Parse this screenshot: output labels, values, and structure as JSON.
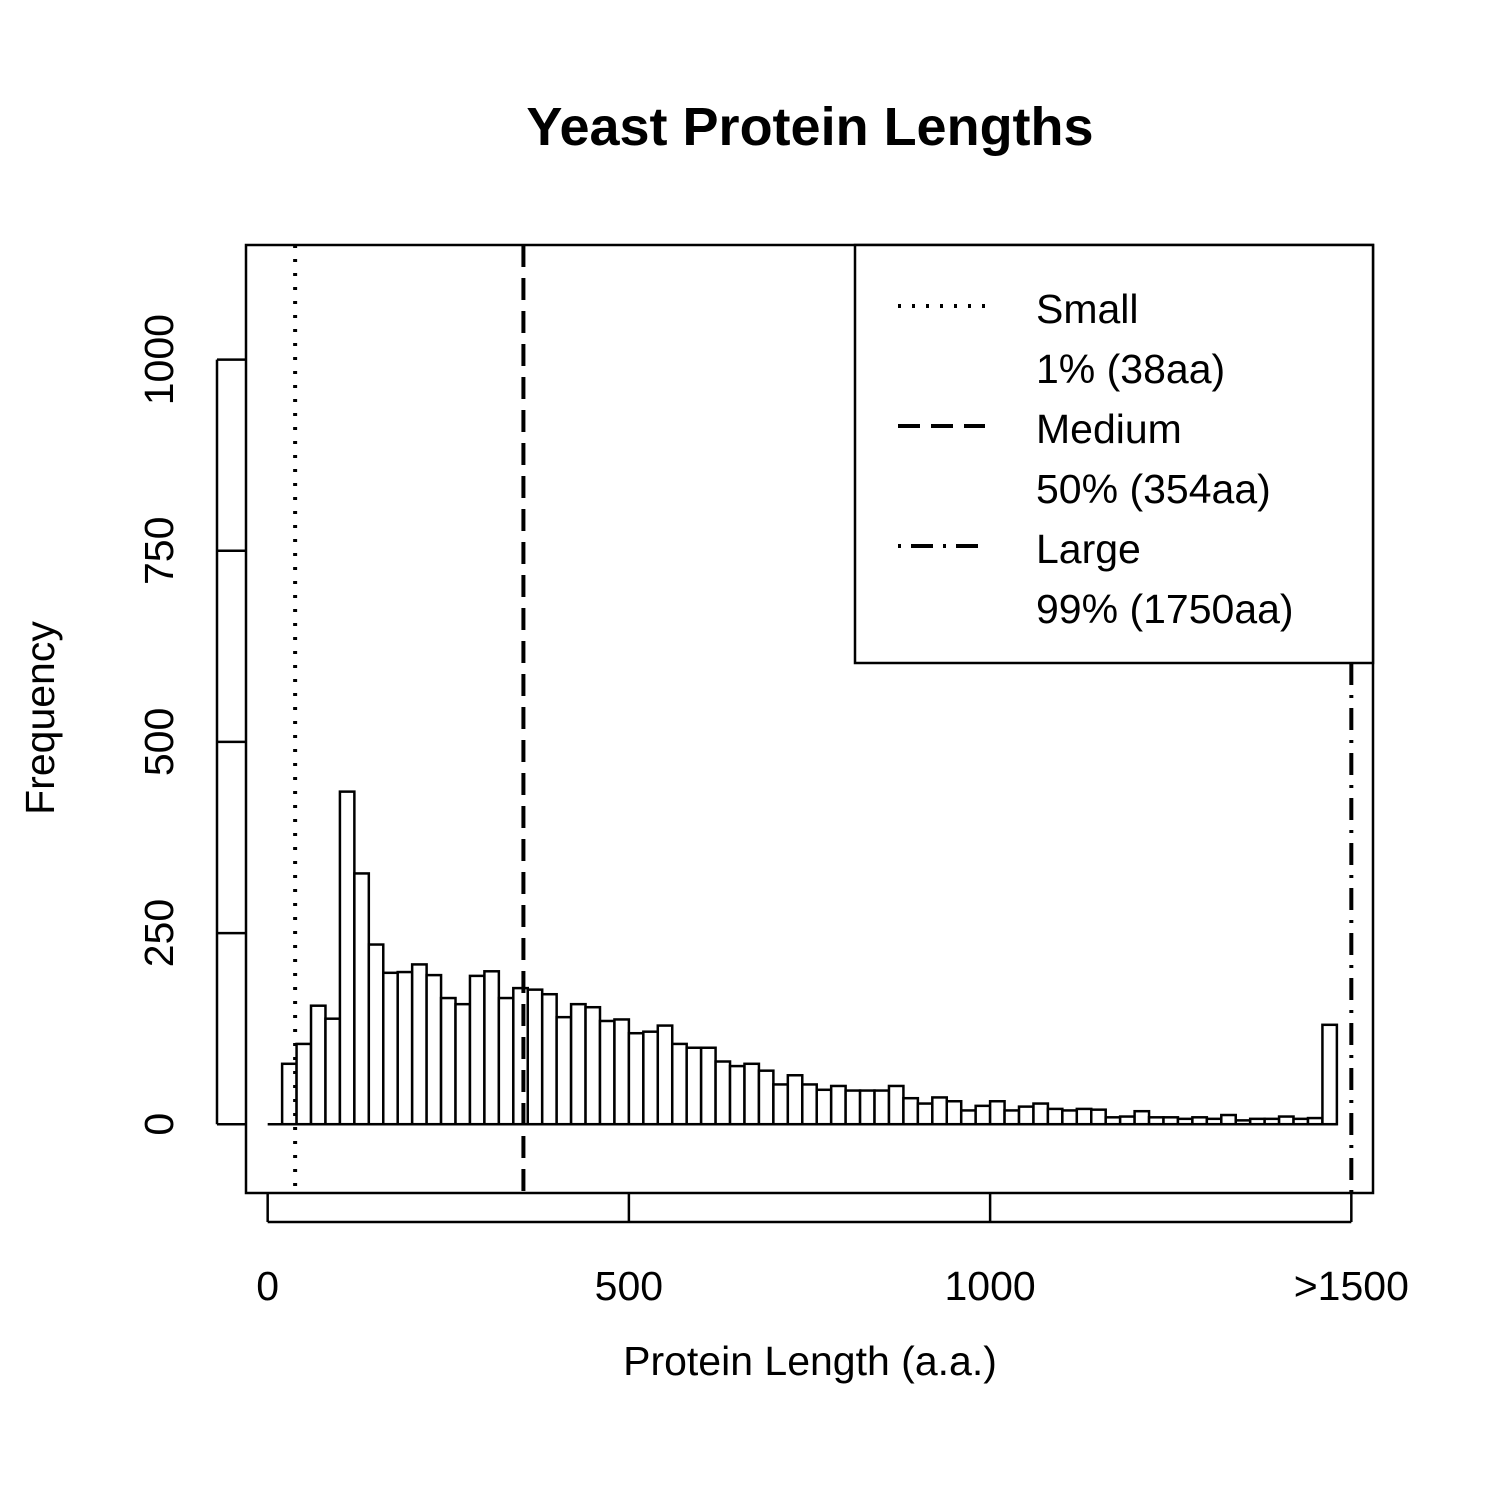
{
  "chart_data": {
    "type": "bar",
    "title": "Yeast Protein Lengths",
    "xlabel": "Protein Length (a.a.)",
    "ylabel": "Frequency",
    "xlim": [
      -30,
      1530
    ],
    "ylim": [
      -90,
      1150
    ],
    "bin_width": 20,
    "bin_start": 20,
    "x_ticks": [
      {
        "value": 0,
        "label": "0"
      },
      {
        "value": 500,
        "label": "500"
      },
      {
        "value": 1000,
        "label": "1000"
      },
      {
        "value": 1500,
        "label": ">1500"
      }
    ],
    "y_ticks": [
      {
        "value": 0,
        "label": "0"
      },
      {
        "value": 250,
        "label": "250"
      },
      {
        "value": 500,
        "label": "500"
      },
      {
        "value": 750,
        "label": "750"
      },
      {
        "value": 1000,
        "label": "1000"
      }
    ],
    "values": [
      79,
      105,
      155,
      138,
      435,
      328,
      235,
      198,
      199,
      209,
      195,
      165,
      157,
      194,
      200,
      165,
      178,
      176,
      170,
      140,
      157,
      153,
      135,
      137,
      119,
      121,
      129,
      105,
      100,
      100,
      82,
      76,
      79,
      70,
      52,
      64,
      52,
      45,
      50,
      44,
      44,
      44,
      50,
      34,
      27,
      35,
      30,
      18,
      24,
      30,
      18,
      23,
      27,
      20,
      18,
      20,
      19,
      9,
      10,
      17,
      9,
      9,
      7,
      9,
      7,
      12,
      5,
      7,
      7,
      10,
      7,
      8,
      130
    ],
    "vlines": [
      {
        "x": 38,
        "style": "dotted"
      },
      {
        "x": 354,
        "style": "dashed"
      },
      {
        "x": 1500,
        "style": "dotdash"
      }
    ],
    "legend_position": "top-right",
    "legend": [
      {
        "label": "Small",
        "sublabel": "1% (38aa)",
        "style": "dotted"
      },
      {
        "label": "Medium",
        "sublabel": "50% (354aa)",
        "style": "dashed"
      },
      {
        "label": "Large",
        "sublabel": "99% (1750aa)",
        "style": "dotdash"
      }
    ]
  }
}
